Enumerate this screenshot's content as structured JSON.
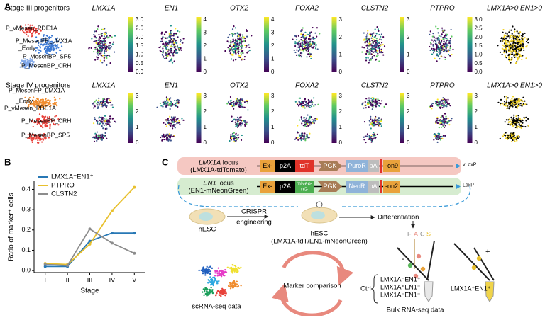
{
  "panel_labels": {
    "a": "A",
    "b": "B",
    "c": "C"
  },
  "panel_a": {
    "rows": [
      {
        "title": "Stage III progenitors",
        "clusters": [
          "P_vMesen_PDE1A",
          "P_MesenFP_LMX1A",
          "_Early",
          "P_MesenBP_SP5",
          "P_MesenBP_CRH"
        ],
        "genes": [
          {
            "name": "LMX1A",
            "scale": [
              "0.0",
              "0.5",
              "1.0",
              "1.5",
              "2.0",
              "2.5",
              "3.0"
            ]
          },
          {
            "name": "EN1",
            "scale": [
              "0",
              "1",
              "2",
              "3",
              "4"
            ]
          },
          {
            "name": "OTX2",
            "scale": [
              "0",
              "1",
              "2",
              "3",
              "4"
            ]
          },
          {
            "name": "FOXA2",
            "scale": [
              "0",
              "1",
              "2",
              "3"
            ]
          },
          {
            "name": "CLSTN2",
            "scale": [
              "0",
              "1",
              "2",
              "3"
            ]
          },
          {
            "name": "PTPRO",
            "scale": [
              "0.0",
              "0.5",
              "1.0",
              "1.5",
              "2.0",
              "2.5",
              "3.0"
            ]
          }
        ],
        "double_positive": "LMX1A>0 EN1>0"
      },
      {
        "title": "Stage IV progenitors",
        "clusters": [
          "P_MesenFP_LMX1A",
          "_Early",
          "P_vMesen_PDE1A",
          "P_MesenBP_CRH",
          "P_MesenBP_SP5"
        ],
        "genes": [
          {
            "name": "LMX1A",
            "scale": [
              "0",
              "1",
              "2",
              "3"
            ]
          },
          {
            "name": "EN1",
            "scale": [
              "0",
              "1",
              "2",
              "3"
            ]
          },
          {
            "name": "OTX2",
            "scale": [
              "0",
              "1",
              "2",
              "3"
            ]
          },
          {
            "name": "FOXA2",
            "scale": [
              "0",
              "1",
              "2",
              "3"
            ]
          },
          {
            "name": "CLSTN2",
            "scale": [
              "0",
              "1",
              "2",
              "3"
            ]
          },
          {
            "name": "PTPRO",
            "scale": [
              "0",
              "1",
              "2",
              "3"
            ]
          }
        ],
        "double_positive": "LMX1A>0 EN1>0"
      }
    ]
  },
  "chart_data": {
    "type": "line",
    "x_label": "Stage",
    "y_label": "Ratio of marker⁺ cells",
    "categories": [
      "I",
      "II",
      "III",
      "IV",
      "V"
    ],
    "series": [
      {
        "name": "LMX1A⁺EN1⁺",
        "color": "#2878b5",
        "values": [
          0.02,
          0.02,
          0.145,
          0.185,
          0.185
        ]
      },
      {
        "name": "PTPRO",
        "color": "#e8c02e",
        "values": [
          0.035,
          0.03,
          0.13,
          0.295,
          0.41
        ]
      },
      {
        "name": "CLSTN2",
        "color": "#8c8c8c",
        "values": [
          0.03,
          0.025,
          0.205,
          0.135,
          0.085
        ]
      }
    ],
    "ylim": [
      -0.01,
      0.44
    ],
    "yticks": [
      {
        "value": 0,
        "label": "0.0"
      },
      {
        "value": 0.1,
        "label": "0.1"
      },
      {
        "value": 0.2,
        "label": "0.2"
      },
      {
        "value": 0.3,
        "label": "0.3"
      },
      {
        "value": 0.4,
        "label": "0.4"
      }
    ],
    "legend": "upper-left"
  },
  "panel_c": {
    "loci": [
      {
        "gene": "LMX1A",
        "word": "locus",
        "construct": "(LMX1A-tdTomato)",
        "parts": [
          [
            "Ex-"
          ],
          [
            "p2A"
          ],
          [
            "tdT"
          ],
          [
            "PGK"
          ],
          [
            "PuroR"
          ],
          [
            "pA"
          ],
          [
            "-on9"
          ]
        ],
        "site": "vLoxP"
      },
      {
        "gene": "EN1",
        "word": "locus",
        "construct": "(EN1-mNeonGreen)",
        "parts": [
          [
            "Ex-"
          ],
          [
            "p2A"
          ],
          [
            "mNeo-",
            "nG"
          ],
          [
            "PGK"
          ],
          [
            "NeoR"
          ],
          [
            "pA"
          ],
          [
            "-on2"
          ]
        ],
        "site": "LoxP"
      }
    ],
    "cell_start": "hESC",
    "engineering": [
      "CRISPR",
      "engineering"
    ],
    "cell_reporter": [
      "hESC",
      "(LMX1A-tdT/EN1-mNeonGreen)"
    ],
    "differentiation": "Differentiation",
    "facs": [
      "F",
      "A",
      "C",
      "S"
    ],
    "signs": [
      "-",
      "+"
    ],
    "sc_label": "scRNA-seq data",
    "comparison": "Marker comparison",
    "ctrl": "Ctrl",
    "controls": [
      "LMX1A⁻EN1⁺",
      "LMX1A⁺EN1⁻",
      "LMX1A⁻EN1⁻"
    ],
    "target": "LMX1A⁺EN1⁺",
    "bulk_label": "Bulk RNA-seq data"
  }
}
